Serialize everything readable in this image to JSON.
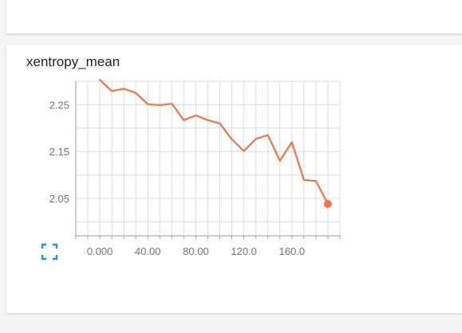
{
  "card": {
    "title": "xentropy_mean"
  },
  "colors": {
    "series": "#f4734b",
    "grid": "#dcdcdc",
    "axis": "#9e9e9e",
    "expand_icon": "#2196f3"
  },
  "icons": {
    "expand": "fullscreen-expand-icon"
  },
  "chart_data": {
    "type": "line",
    "title": "xentropy_mean",
    "xlabel": "",
    "ylabel": "",
    "xlim": [
      -20,
      200
    ],
    "ylim": [
      1.97,
      2.3
    ],
    "x_ticks": [
      0,
      40,
      80,
      120,
      160
    ],
    "x_tick_labels": [
      "0.000",
      "40.00",
      "80.00",
      "120.0",
      "160.0"
    ],
    "y_ticks": [
      2.05,
      2.15,
      2.25
    ],
    "y_tick_labels": [
      "2.05",
      "2.15",
      "2.25"
    ],
    "grid": true,
    "series": [
      {
        "x": [
          0,
          10,
          20,
          30,
          40,
          50,
          60,
          70,
          80,
          90,
          100,
          110,
          120,
          130,
          140,
          150,
          160,
          170,
          180,
          190
        ],
        "y": [
          2.303,
          2.279,
          2.284,
          2.275,
          2.251,
          2.249,
          2.252,
          2.217,
          2.227,
          2.217,
          2.21,
          2.176,
          2.151,
          2.177,
          2.185,
          2.13,
          2.17,
          2.089,
          2.087,
          2.038
        ]
      }
    ]
  }
}
